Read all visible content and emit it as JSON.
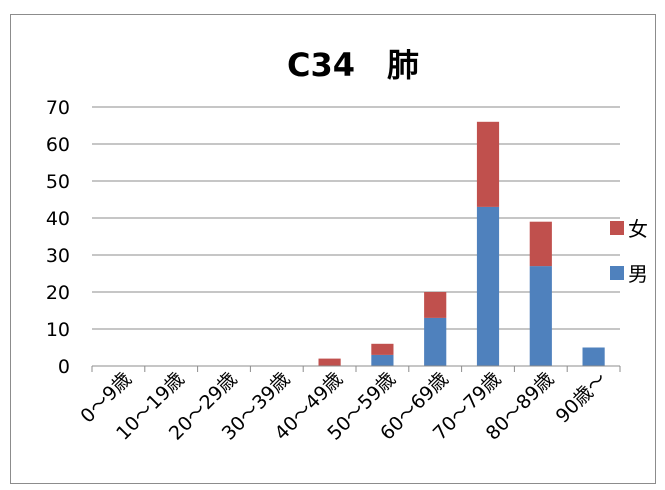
{
  "chart_data": {
    "type": "bar",
    "stacked": true,
    "title": "C34　肺",
    "categories": [
      "0～9歳",
      "10～19歳",
      "20～29歳",
      "30～39歳",
      "40～49歳",
      "50～59歳",
      "60～69歳",
      "70～79歳",
      "80～89歳",
      "90歳～"
    ],
    "series": [
      {
        "name": "男",
        "color": "#4f81bd",
        "values": [
          0,
          0,
          0,
          0,
          0,
          3,
          13,
          43,
          27,
          5
        ]
      },
      {
        "name": "女",
        "color": "#c0504d",
        "values": [
          0,
          0,
          0,
          0,
          2,
          3,
          7,
          23,
          12,
          0
        ]
      }
    ],
    "ylim": [
      0,
      70
    ],
    "yticks": [
      0,
      10,
      20,
      30,
      40,
      50,
      60,
      70
    ],
    "grid": true,
    "legend": "right"
  }
}
